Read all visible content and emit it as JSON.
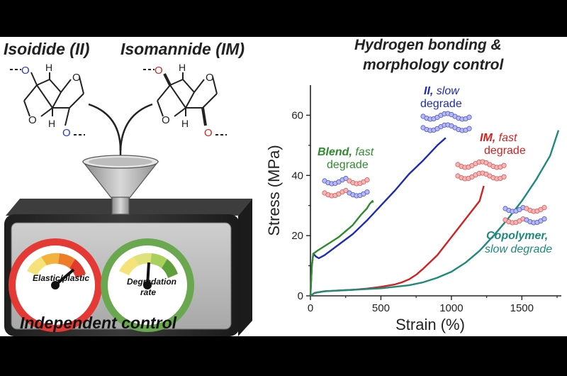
{
  "left": {
    "mol1_label": "Isoidide (II)",
    "mol2_label": "Isomannide (IM)",
    "mol_atoms": {
      "oxygen": "O",
      "hydrogen": "H"
    },
    "gauge1_label": "Elastic/plastic",
    "gauge2_label": "Degradation rate",
    "control_label": "Independent control",
    "colors": {
      "gauge1_ring": "#e53935",
      "gauge2_ring": "#6aa84f",
      "box": "#2b2b2b",
      "panel": "#b9b9b9"
    }
  },
  "right": {
    "heading_line1": "Hydrogen bonding &",
    "heading_line2": "morphology control",
    "annotations": {
      "ii_bold": "II,",
      "ii_rest1": "slow",
      "ii_rest2": "degrade",
      "im_bold": "IM,",
      "im_rest1": "fast",
      "im_rest2": "degrade",
      "blend_bold": "Blend,",
      "blend_rest1": "fast",
      "blend_rest2": "degrade",
      "copo_bold": "Copolymer,",
      "copo_rest": "slow degrade"
    }
  },
  "chart_data": {
    "type": "line",
    "xlabel": "Strain (%)",
    "ylabel": "Stress (MPa)",
    "xlim": [
      0,
      1780
    ],
    "ylim": [
      0,
      70
    ],
    "xticks": [
      0,
      500,
      1000,
      1500
    ],
    "yticks": [
      0,
      20,
      40,
      60
    ],
    "grid": false,
    "series": [
      {
        "name": "II",
        "color": "#1f2bb5",
        "x": [
          0,
          10,
          20,
          40,
          60,
          100,
          200,
          300,
          400,
          500,
          600,
          700,
          800,
          900,
          960
        ],
        "y": [
          0,
          10,
          14,
          13,
          12.5,
          13.5,
          17,
          20.5,
          25,
          30,
          35,
          40.5,
          45,
          50,
          52.5
        ]
      },
      {
        "name": "Blend",
        "color": "#2e8b2e",
        "x": [
          0,
          10,
          20,
          50,
          100,
          200,
          300,
          360,
          400,
          420,
          440,
          445
        ],
        "y": [
          0,
          10,
          14,
          15,
          16.5,
          19.5,
          23.5,
          27,
          29,
          30.5,
          31.5,
          31
        ]
      },
      {
        "name": "IM",
        "color": "#d42020",
        "x": [
          0,
          30,
          100,
          200,
          300,
          400,
          500,
          600,
          650,
          700,
          750,
          800,
          900,
          1000,
          1100,
          1200,
          1230
        ],
        "y": [
          0,
          1,
          1.5,
          1.8,
          2,
          2.4,
          3,
          3.8,
          4.5,
          5.5,
          7,
          9,
          13.5,
          19.5,
          25.5,
          31.5,
          36.5
        ]
      },
      {
        "name": "Copolymer",
        "color": "#1e8a7a",
        "x": [
          0,
          30,
          100,
          300,
          500,
          700,
          800,
          900,
          1000,
          1100,
          1200,
          1300,
          1400,
          1500,
          1600,
          1700,
          1760
        ],
        "y": [
          0,
          1,
          1.5,
          2,
          2.5,
          3.5,
          4.5,
          6,
          8,
          11,
          15,
          20,
          25.5,
          31.5,
          38.5,
          46.5,
          55
        ]
      }
    ]
  }
}
